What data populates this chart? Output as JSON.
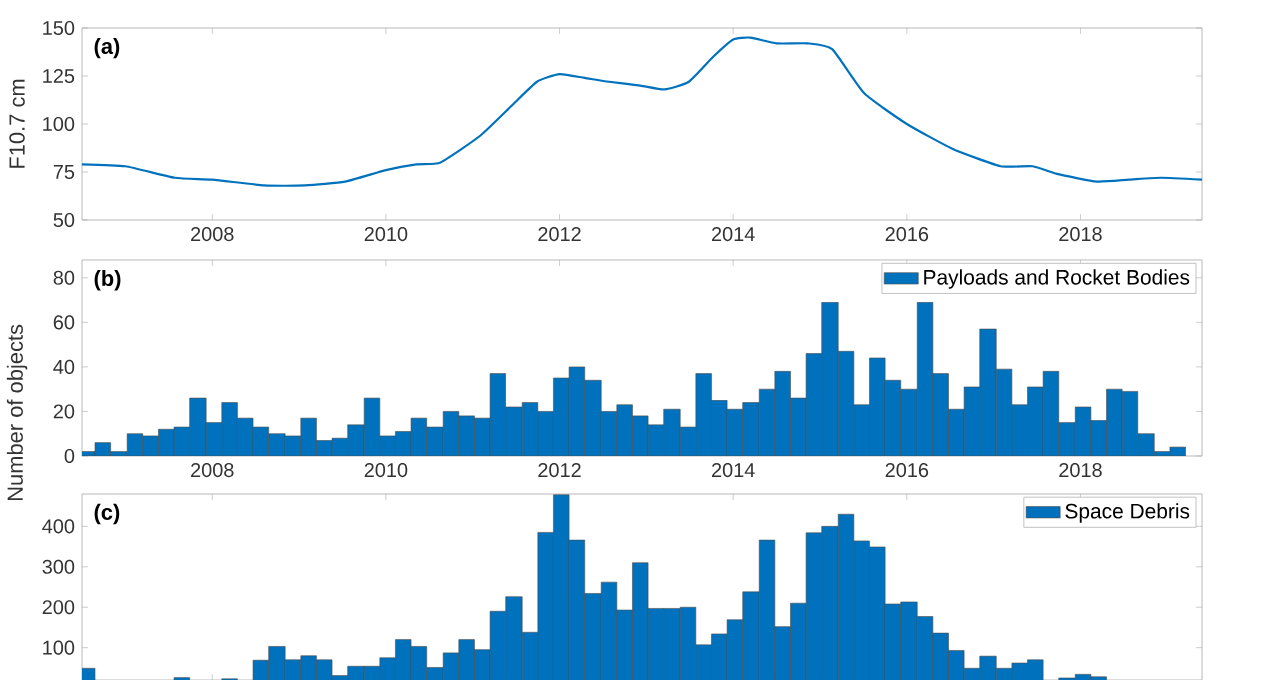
{
  "chart_data": [
    {
      "type": "line",
      "ylabel": "F10.7 cm",
      "annotations": [
        "(a)"
      ],
      "x": [
        2006.5,
        2007.0,
        2007.57,
        2008.0,
        2008.6,
        2009.07,
        2009.53,
        2010.0,
        2010.35,
        2010.63,
        2011.09,
        2011.46,
        2011.74,
        2012.0,
        2012.29,
        2012.57,
        2012.93,
        2013.21,
        2013.49,
        2013.77,
        2014.0,
        2014.2,
        2014.5,
        2014.86,
        2015.14,
        2015.51,
        2016.0,
        2016.53,
        2017.08,
        2017.45,
        2017.73,
        2018.19,
        2018.56,
        2018.93,
        2019.4
      ],
      "series": [
        {
          "color": "#0072bd",
          "values": [
            79,
            78,
            72,
            71,
            68,
            68,
            70,
            76,
            79,
            80,
            94,
            110,
            122,
            126,
            124,
            122,
            120,
            118,
            122,
            135,
            144,
            145,
            142,
            142,
            139,
            116,
            100,
            87,
            78,
            78,
            74,
            70,
            71,
            72,
            71
          ]
        }
      ],
      "xlim": [
        2006.5,
        2019.4
      ],
      "xticks": [
        2008,
        2010,
        2012,
        2014,
        2016,
        2018
      ],
      "ylim": [
        50,
        150
      ],
      "yticks": [
        50,
        75,
        100,
        125,
        150
      ]
    },
    {
      "type": "histogram",
      "ylabel": "Number of objects",
      "annotations": [
        "(b)"
      ],
      "legend": "top right",
      "bins": [
        2006.47,
        2006.65,
        2006.83,
        2007.02,
        2007.2,
        2007.38,
        2007.56,
        2007.74,
        2007.93,
        2008.11,
        2008.29,
        2008.47,
        2008.65,
        2008.84,
        2009.02,
        2009.2,
        2009.38,
        2009.56,
        2009.75,
        2009.93,
        2010.11,
        2010.29,
        2010.47,
        2010.66,
        2010.84,
        2011.02,
        2011.2,
        2011.38,
        2011.57,
        2011.75,
        2011.93,
        2012.11,
        2012.29,
        2012.48,
        2012.66,
        2012.84,
        2013.02,
        2013.2,
        2013.39,
        2013.57,
        2013.75,
        2013.93,
        2014.11,
        2014.3,
        2014.48,
        2014.66,
        2014.84,
        2015.02,
        2015.21,
        2015.39,
        2015.57,
        2015.75,
        2015.93,
        2016.12,
        2016.3,
        2016.48,
        2016.66,
        2016.84,
        2017.03,
        2017.21,
        2017.39,
        2017.57,
        2017.75,
        2017.94,
        2018.12,
        2018.3,
        2018.48,
        2018.66,
        2018.85,
        2019.03,
        2019.21
      ],
      "series": [
        {
          "name": "Payloads and Rocket Bodies",
          "color": "#0072bd",
          "values": [
            2,
            6,
            2,
            10,
            9,
            12,
            13,
            26,
            15,
            24,
            17,
            13,
            10,
            9,
            17,
            7,
            8,
            14,
            26,
            9,
            11,
            17,
            13,
            20,
            18,
            17,
            37,
            22,
            24,
            20,
            35,
            40,
            34,
            20,
            23,
            18,
            14,
            21,
            13,
            37,
            25,
            21,
            24,
            30,
            38,
            26,
            46,
            69,
            47,
            23,
            44,
            34,
            30,
            69,
            37,
            21,
            31,
            57,
            39,
            23,
            31,
            38,
            15,
            22,
            16,
            30,
            29,
            10,
            2,
            4
          ]
        }
      ],
      "xlim": [
        2006.5,
        2019.4
      ],
      "xticks": [
        2008,
        2010,
        2012,
        2014,
        2016,
        2018
      ],
      "ylim": [
        0,
        88
      ],
      "yticks": [
        0,
        20,
        40,
        60,
        80
      ]
    },
    {
      "type": "histogram",
      "annotations": [
        "(c)"
      ],
      "legend": "top right",
      "tick_labels": "y",
      "bins": [
        2006.47,
        2006.65,
        2007.56,
        2007.74,
        2008.11,
        2008.29,
        2008.47,
        2008.65,
        2008.84,
        2009.02,
        2009.2,
        2009.38,
        2009.56,
        2009.75,
        2009.93,
        2010.11,
        2010.29,
        2010.47,
        2010.66,
        2010.84,
        2011.02,
        2011.2,
        2011.38,
        2011.57,
        2011.75,
        2011.93,
        2012.11,
        2012.29,
        2012.48,
        2012.66,
        2012.84,
        2013.02,
        2013.2,
        2013.39,
        2013.57,
        2013.75,
        2013.93,
        2014.11,
        2014.3,
        2014.48,
        2014.66,
        2014.84,
        2015.02,
        2015.21,
        2015.39,
        2015.57,
        2015.75,
        2015.93,
        2016.12,
        2016.3,
        2016.48,
        2016.66,
        2016.84,
        2017.03,
        2017.21,
        2017.39,
        2017.57,
        2017.75,
        2017.94,
        2018.12,
        2018.3
      ],
      "series": [
        {
          "name": "Space Debris",
          "color": "#0072bd",
          "values": [
            49,
            null,
            26,
            null,
            23,
            null,
            69,
            103,
            70,
            80,
            70,
            31,
            54,
            54,
            75,
            120,
            103,
            51,
            87,
            120,
            95,
            190,
            226,
            138,
            385,
            478,
            366,
            234,
            262,
            193,
            310,
            197,
            197,
            200,
            107,
            134,
            169,
            238,
            366,
            152,
            210,
            384,
            400,
            430,
            364,
            349,
            208,
            213,
            177,
            136,
            93,
            49,
            79,
            49,
            62,
            70,
            null,
            25,
            34,
            28
          ]
        }
      ],
      "xlim": [
        2006.5,
        2019.4
      ],
      "xticks": [
        2008,
        2010,
        2012,
        2014,
        2016,
        2018
      ],
      "ylim": [
        20,
        480
      ],
      "yticks": [
        100,
        200,
        300,
        400
      ]
    }
  ]
}
